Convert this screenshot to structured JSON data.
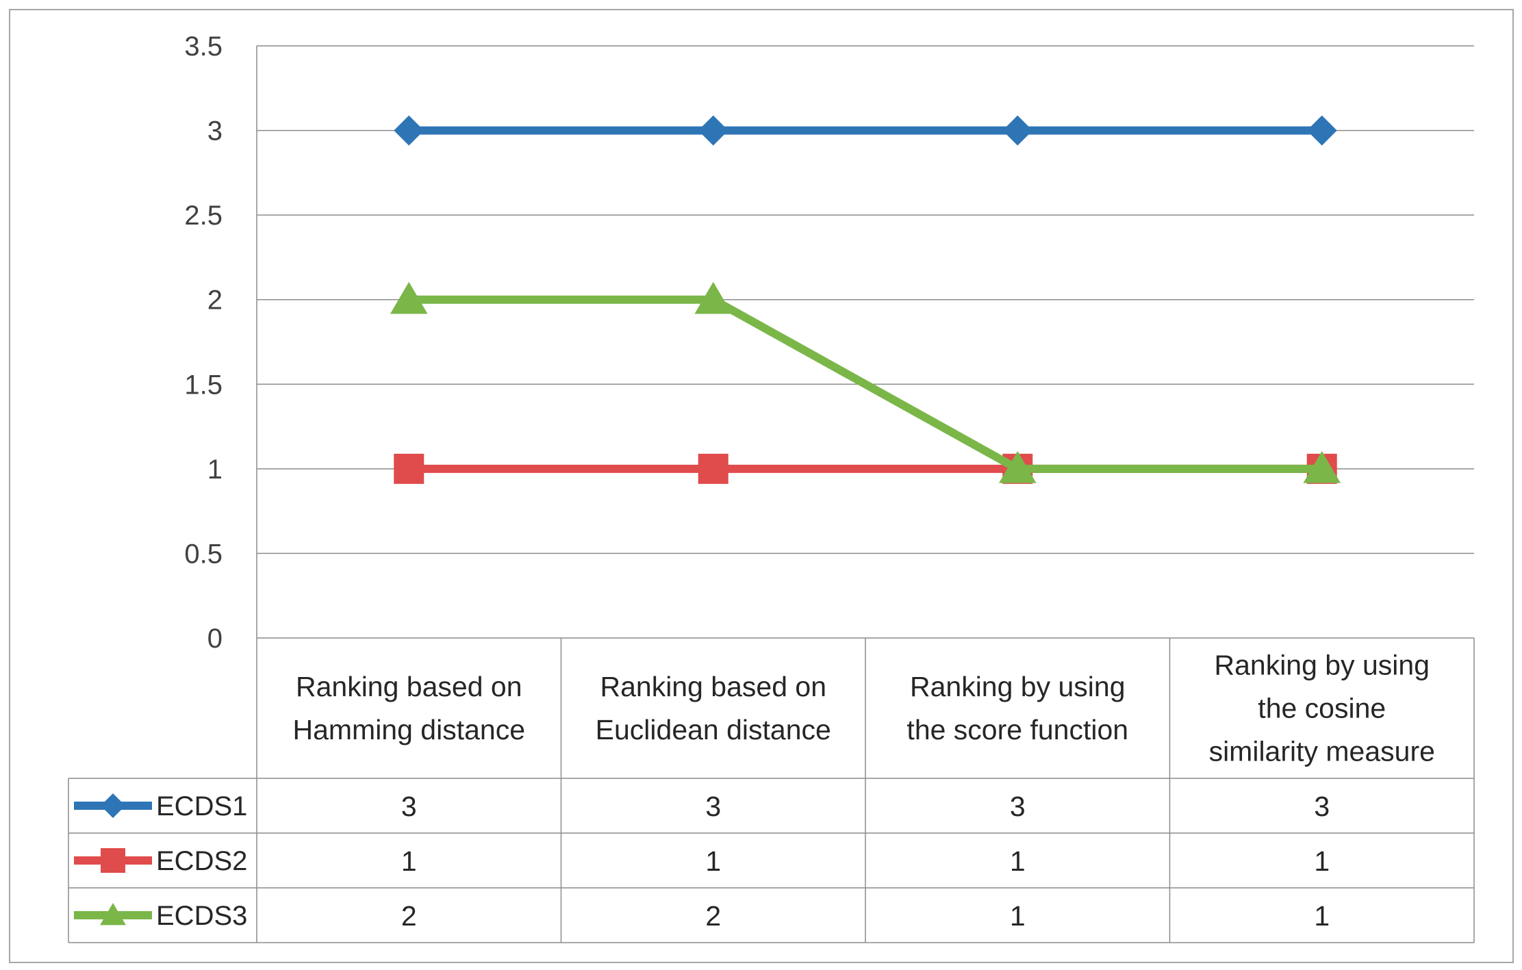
{
  "chart_data": {
    "type": "line",
    "title": "",
    "xlabel": "",
    "ylabel": "",
    "ylim": [
      0,
      3.5
    ],
    "ytick_step": 0.5,
    "grid": true,
    "legend": "data-table-left",
    "categories": [
      [
        "Ranking based on",
        "Hamming distance"
      ],
      [
        "Ranking based on",
        "Euclidean  distance"
      ],
      [
        "Ranking by using",
        "the score function"
      ],
      [
        "Ranking by using",
        "the cosine",
        "similarity measure"
      ]
    ],
    "series": [
      {
        "name": "ECDS1",
        "values": [
          3,
          3,
          3,
          3
        ],
        "color": "#2E75B6",
        "marker": "diamond"
      },
      {
        "name": "ECDS2",
        "values": [
          1,
          1,
          1,
          1
        ],
        "color": "#E04B4B",
        "marker": "square"
      },
      {
        "name": "ECDS3",
        "values": [
          2,
          2,
          1,
          1
        ],
        "color": "#7AB648",
        "marker": "triangle"
      }
    ]
  }
}
